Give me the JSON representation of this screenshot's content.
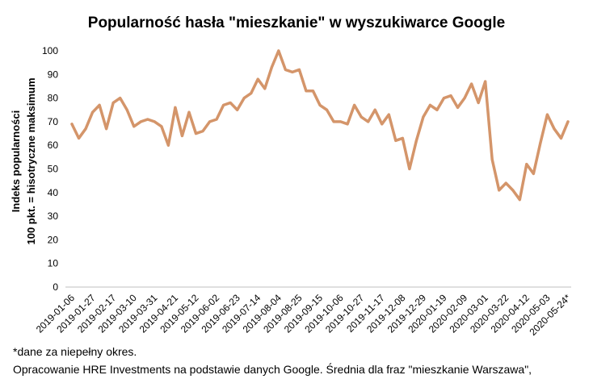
{
  "chart_data": {
    "type": "line",
    "title": "Popularność hasła \"mieszkanie\" w wyszukiwarce Google",
    "ylabel_line1": "Indeks popularności",
    "ylabel_line2": "100 pkt. = hisotryczne maksimum",
    "xlabel": "",
    "ylim": [
      0,
      100
    ],
    "yticks": [
      0,
      10,
      20,
      30,
      40,
      50,
      60,
      70,
      80,
      90,
      100
    ],
    "grid": false,
    "legend": "none",
    "line_color": "#D4956A",
    "x_tick_labels": [
      "2019-01-06",
      "2019-01-27",
      "2019-02-17",
      "2019-03-10",
      "2019-03-31",
      "2019-04-21",
      "2019-05-12",
      "2019-06-02",
      "2019-06-23",
      "2019-07-14",
      "2019-08-04",
      "2019-08-25",
      "2019-09-15",
      "2019-10-06",
      "2019-10-27",
      "2019-11-17",
      "2019-12-08",
      "2019-12-29",
      "2020-01-19",
      "2020-02-09",
      "2020-03-01",
      "2020-03-22",
      "2020-04-12",
      "2020-05-03",
      "2020-05-24*"
    ],
    "x": [
      "2019-01-06",
      "2019-01-13",
      "2019-01-20",
      "2019-01-27",
      "2019-02-03",
      "2019-02-10",
      "2019-02-17",
      "2019-02-24",
      "2019-03-03",
      "2019-03-10",
      "2019-03-17",
      "2019-03-24",
      "2019-03-31",
      "2019-04-07",
      "2019-04-14",
      "2019-04-21",
      "2019-04-28",
      "2019-05-05",
      "2019-05-12",
      "2019-05-19",
      "2019-05-26",
      "2019-06-02",
      "2019-06-09",
      "2019-06-16",
      "2019-06-23",
      "2019-06-30",
      "2019-07-07",
      "2019-07-14",
      "2019-07-21",
      "2019-07-28",
      "2019-08-04",
      "2019-08-11",
      "2019-08-18",
      "2019-08-25",
      "2019-09-01",
      "2019-09-08",
      "2019-09-15",
      "2019-09-22",
      "2019-09-29",
      "2019-10-06",
      "2019-10-13",
      "2019-10-20",
      "2019-10-27",
      "2019-11-03",
      "2019-11-10",
      "2019-11-17",
      "2019-11-24",
      "2019-12-01",
      "2019-12-08",
      "2019-12-15",
      "2019-12-22",
      "2019-12-29",
      "2020-01-05",
      "2020-01-12",
      "2020-01-19",
      "2020-01-26",
      "2020-02-02",
      "2020-02-09",
      "2020-02-16",
      "2020-02-23",
      "2020-03-01",
      "2020-03-08",
      "2020-03-15",
      "2020-03-22",
      "2020-03-29",
      "2020-04-05",
      "2020-04-12",
      "2020-04-19",
      "2020-04-26",
      "2020-05-03",
      "2020-05-10",
      "2020-05-17",
      "2020-05-24"
    ],
    "values": [
      69,
      63,
      67,
      74,
      77,
      67,
      78,
      80,
      75,
      68,
      70,
      71,
      70,
      68,
      60,
      76,
      64,
      74,
      65,
      66,
      70,
      71,
      77,
      78,
      75,
      80,
      82,
      88,
      84,
      93,
      100,
      92,
      91,
      92,
      83,
      83,
      77,
      75,
      70,
      70,
      69,
      77,
      72,
      70,
      75,
      69,
      73,
      62,
      63,
      50,
      62,
      72,
      77,
      75,
      80,
      81,
      76,
      80,
      86,
      78,
      87,
      54,
      41,
      44,
      41,
      37,
      52,
      48,
      61,
      73,
      67,
      63,
      70
    ]
  },
  "notes": {
    "footnote": "*dane za niepełny okres.",
    "source": "Opracowanie HRE Investments na podstawie danych Google. Średnia dla fraz \"mieszkanie Warszawa\","
  }
}
